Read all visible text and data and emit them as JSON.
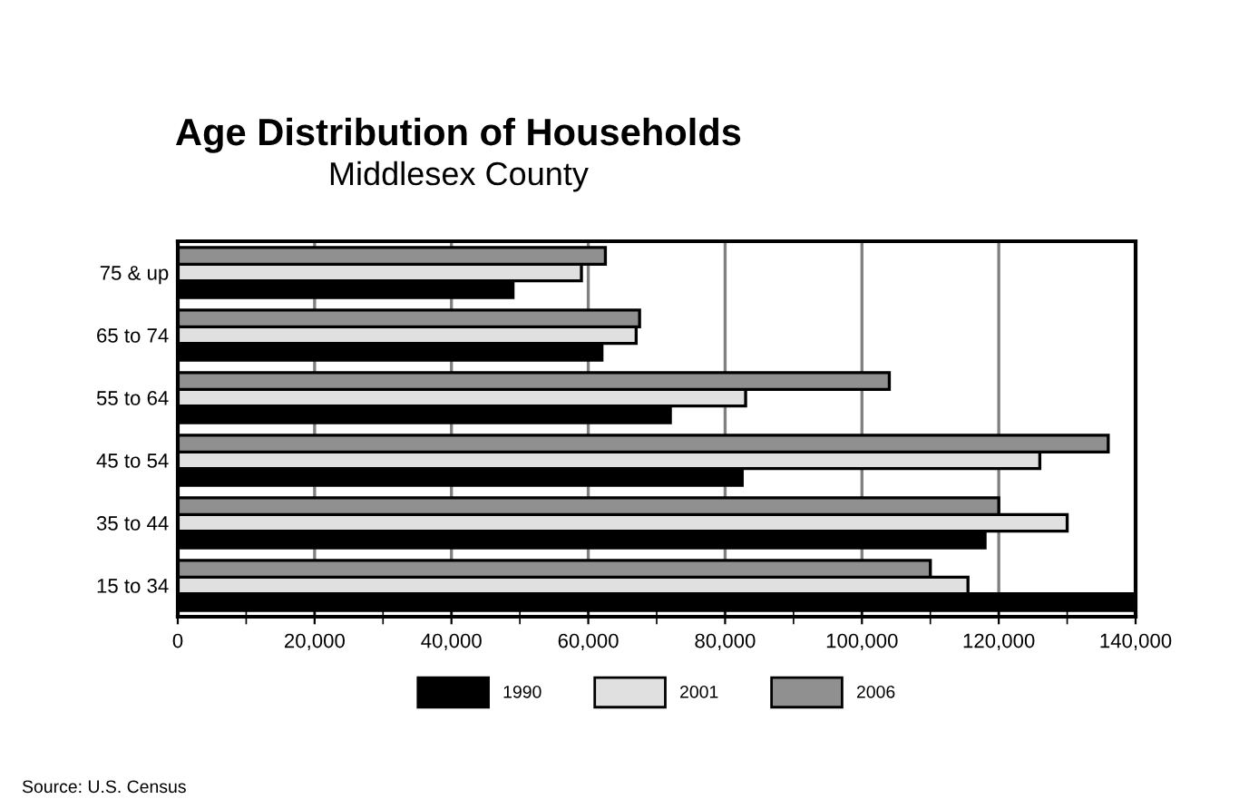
{
  "chart_data": {
    "type": "bar",
    "orientation": "horizontal",
    "title": "Age Distribution of Households",
    "subtitle": "Middlesex County",
    "categories": [
      "75 & up",
      "65 to 74",
      "55 to 64",
      "45 to 54",
      "35 to 44",
      "15 to 34"
    ],
    "series": [
      {
        "name": "1990",
        "color": "#000000",
        "values": [
          49000,
          62000,
          72000,
          82500,
          118000,
          140000
        ]
      },
      {
        "name": "2001",
        "color": "#e0e0e0",
        "values": [
          59000,
          67000,
          83000,
          126000,
          130000,
          115500
        ]
      },
      {
        "name": "2006",
        "color": "#909090",
        "values": [
          62500,
          67500,
          104000,
          136000,
          120000,
          110000
        ]
      }
    ],
    "xlim": [
      0,
      140000
    ],
    "xticks": [
      {
        "value": 0,
        "label": "0"
      },
      {
        "value": 10000,
        "label": null
      },
      {
        "value": 20000,
        "label": "20,000"
      },
      {
        "value": 30000,
        "label": null
      },
      {
        "value": 40000,
        "label": "40,000"
      },
      {
        "value": 50000,
        "label": null
      },
      {
        "value": 60000,
        "label": "60,000"
      },
      {
        "value": 70000,
        "label": null
      },
      {
        "value": 80000,
        "label": "80,000"
      },
      {
        "value": 90000,
        "label": null
      },
      {
        "value": 100000,
        "label": "100,000"
      },
      {
        "value": 110000,
        "label": null
      },
      {
        "value": 120000,
        "label": "120,000"
      },
      {
        "value": 130000,
        "label": null
      },
      {
        "value": 140000,
        "label": "140,000"
      }
    ],
    "grid": "x",
    "legend": "bottom",
    "annotations": [
      "Source: U.S. Census"
    ]
  }
}
